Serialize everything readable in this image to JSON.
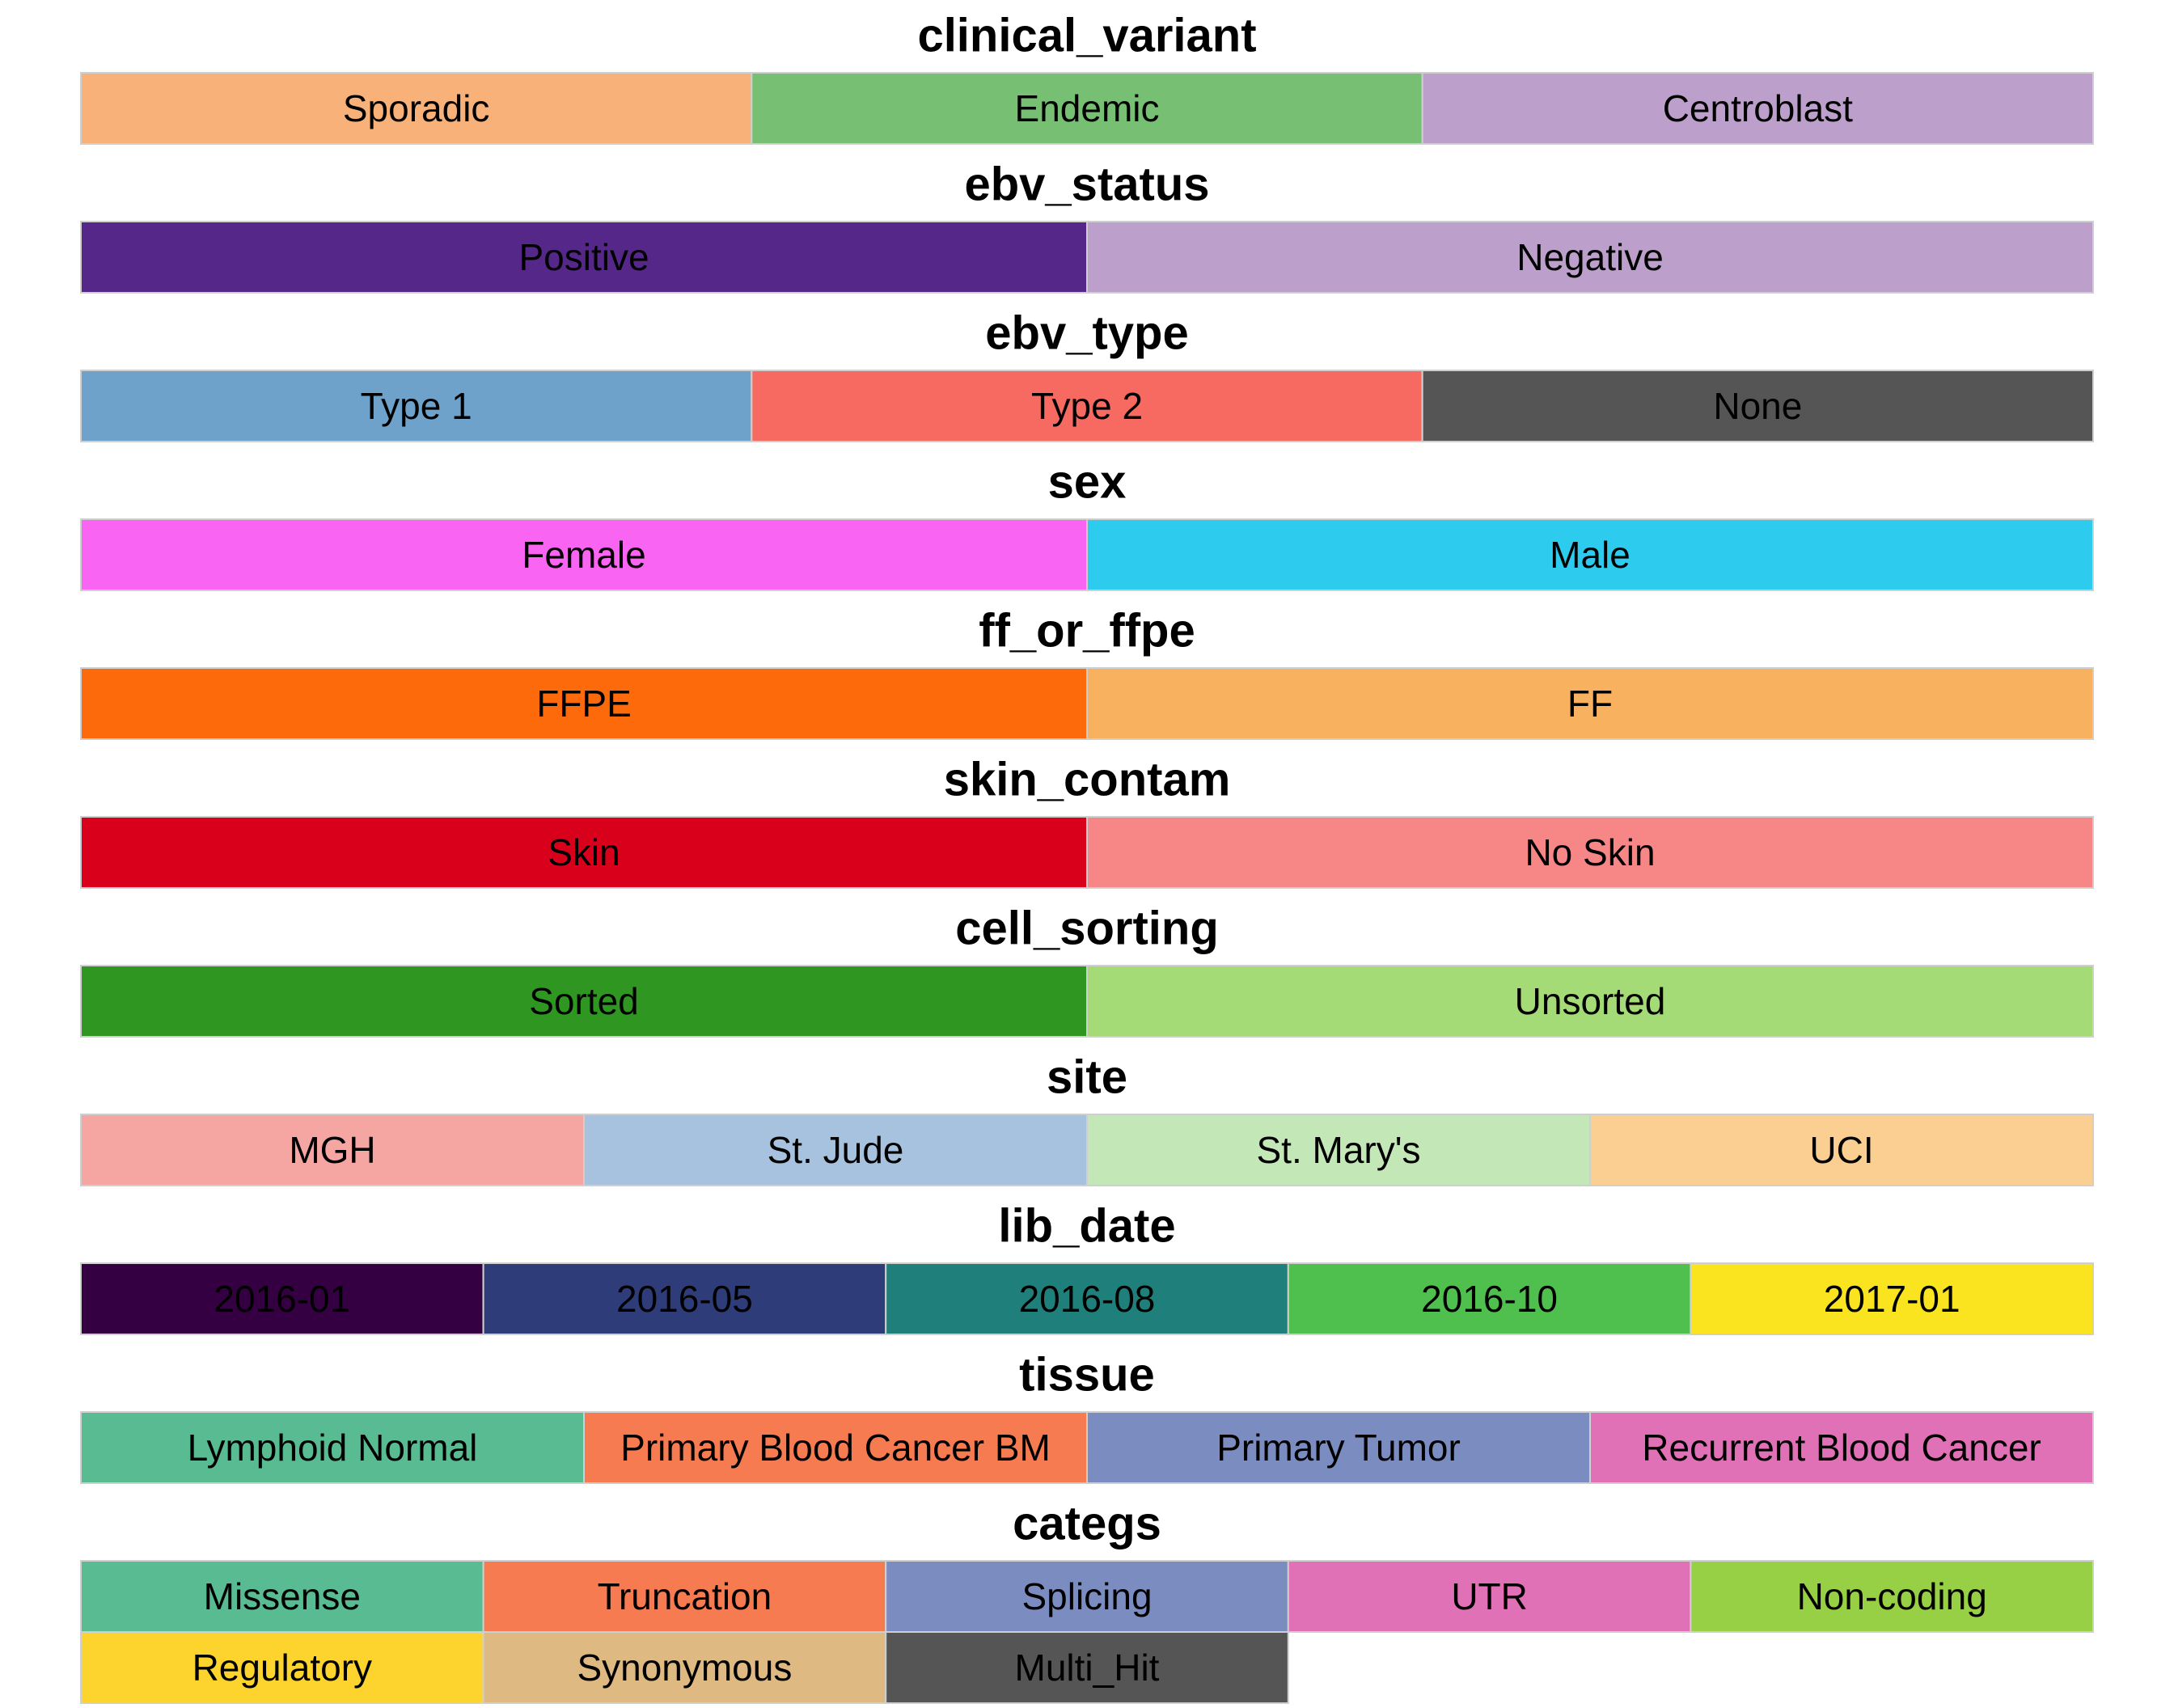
{
  "chart_data": {
    "type": "table",
    "panels": [
      {
        "title": "clinical_variant",
        "columns": 3,
        "entries": [
          {
            "label": "Sporadic",
            "color": "#F8B279"
          },
          {
            "label": "Endemic",
            "color": "#77BF72"
          },
          {
            "label": "Centroblast",
            "color": "#BC9FCA"
          }
        ]
      },
      {
        "title": "ebv_status",
        "columns": 2,
        "entries": [
          {
            "label": "Positive",
            "color": "#552788"
          },
          {
            "label": "Negative",
            "color": "#BC9FCA"
          }
        ]
      },
      {
        "title": "ebv_type",
        "columns": 3,
        "entries": [
          {
            "label": "Type 1",
            "color": "#6EA2CA"
          },
          {
            "label": "Type 2",
            "color": "#F76A62"
          },
          {
            "label": "None",
            "color": "#555555"
          }
        ]
      },
      {
        "title": "sex",
        "columns": 2,
        "entries": [
          {
            "label": "Female",
            "color": "#F964F3"
          },
          {
            "label": "Male",
            "color": "#2DCCEF"
          }
        ]
      },
      {
        "title": "ff_or_ffpe",
        "columns": 2,
        "entries": [
          {
            "label": "FFPE",
            "color": "#FC6A0B"
          },
          {
            "label": "FF",
            "color": "#F8B25F"
          }
        ]
      },
      {
        "title": "skin_contam",
        "columns": 2,
        "entries": [
          {
            "label": "Skin",
            "color": "#D9001B"
          },
          {
            "label": "No Skin",
            "color": "#F78686"
          }
        ]
      },
      {
        "title": "cell_sorting",
        "columns": 2,
        "entries": [
          {
            "label": "Sorted",
            "color": "#2E9621"
          },
          {
            "label": "Unsorted",
            "color": "#A4DB76"
          }
        ]
      },
      {
        "title": "site",
        "columns": 4,
        "entries": [
          {
            "label": "MGH",
            "color": "#F6A6A2"
          },
          {
            "label": "St. Jude",
            "color": "#A7C2DE"
          },
          {
            "label": "St. Mary's",
            "color": "#C3E7B7"
          },
          {
            "label": "UCI",
            "color": "#FBCE92"
          }
        ]
      },
      {
        "title": "lib_date",
        "columns": 5,
        "entries": [
          {
            "label": "2016-01",
            "color": "#340042"
          },
          {
            "label": "2016-05",
            "color": "#2E3D79"
          },
          {
            "label": "2016-08",
            "color": "#1F7F7B"
          },
          {
            "label": "2016-10",
            "color": "#4FBF4E"
          },
          {
            "label": "2017-01",
            "color": "#FAE31F"
          }
        ]
      },
      {
        "title": "tissue",
        "columns": 4,
        "entries": [
          {
            "label": "Lymphoid Normal",
            "color": "#58BB91"
          },
          {
            "label": "Primary Blood Cancer BM",
            "color": "#F77B50"
          },
          {
            "label": "Primary Tumor",
            "color": "#7B8CC0"
          },
          {
            "label": "Recurrent Blood Cancer",
            "color": "#E071B6"
          }
        ]
      },
      {
        "title": "categs",
        "columns": 5,
        "entries": [
          {
            "label": "Missense",
            "color": "#58BB91"
          },
          {
            "label": "Truncation",
            "color": "#F77B50"
          },
          {
            "label": "Splicing",
            "color": "#7B8CC0"
          },
          {
            "label": "UTR",
            "color": "#E071B6"
          },
          {
            "label": "Non-coding",
            "color": "#97D044"
          },
          {
            "label": "Regulatory",
            "color": "#FDD42D"
          },
          {
            "label": "Synonymous",
            "color": "#DEB982"
          },
          {
            "label": "Multi_Hit",
            "color": "#555555"
          }
        ]
      }
    ]
  }
}
